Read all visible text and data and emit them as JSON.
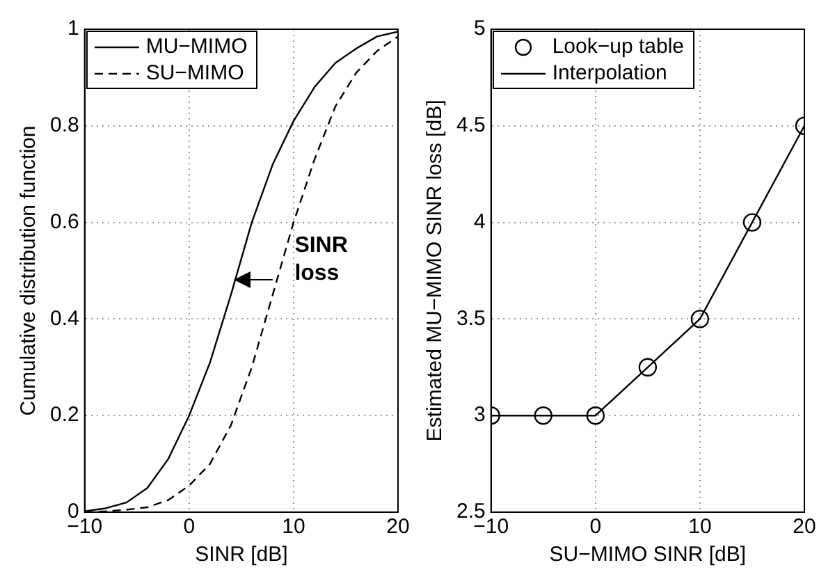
{
  "chart_data": [
    {
      "type": "line",
      "xlabel": "SINR [dB]",
      "ylabel": "Cumulative distribution function",
      "x": [
        -10,
        -8,
        -6,
        -4,
        -2,
        0,
        2,
        4,
        6,
        8,
        10,
        12,
        14,
        16,
        18,
        20
      ],
      "xlim": [
        -10,
        20
      ],
      "xticks": [
        -10,
        0,
        10,
        20
      ],
      "ylim": [
        0,
        1
      ],
      "yticks": [
        0,
        0.2,
        0.4,
        0.6,
        0.8,
        1
      ],
      "grid": true,
      "legend": "top left",
      "marker": "none",
      "annotations": [
        "SINR loss"
      ],
      "series": [
        {
          "name": "MU−MIMO",
          "color": "#000000",
          "line_style": "solid",
          "values": [
            0.002,
            0.008,
            0.02,
            0.05,
            0.11,
            0.2,
            0.31,
            0.45,
            0.6,
            0.72,
            0.81,
            0.88,
            0.93,
            0.96,
            0.985,
            0.995
          ]
        },
        {
          "name": "SU−MIMO",
          "color": "#000000",
          "line_style": "dashed",
          "values": [
            0,
            0.002,
            0.005,
            0.01,
            0.025,
            0.055,
            0.1,
            0.18,
            0.3,
            0.45,
            0.6,
            0.73,
            0.84,
            0.91,
            0.955,
            0.985
          ]
        }
      ]
    },
    {
      "type": "line",
      "xlabel": "SU−MIMO SINR [dB]",
      "ylabel": "Estimated MU−MIMO SINR loss [dB]",
      "x": [
        -10,
        -5,
        0,
        5,
        10,
        15,
        20
      ],
      "xlim": [
        -10,
        20
      ],
      "xticks": [
        -10,
        0,
        10,
        20
      ],
      "ylim": [
        2.5,
        5
      ],
      "yticks": [
        2.5,
        3,
        3.5,
        4,
        4.5,
        5
      ],
      "grid": true,
      "legend": "top left",
      "series": [
        {
          "name": "Look−up table",
          "type": "scatter",
          "marker": "circle",
          "color": "#000000",
          "values": [
            3,
            3,
            3,
            3.25,
            3.5,
            4,
            4.5
          ]
        },
        {
          "name": "Interpolation",
          "type": "line",
          "marker": "none",
          "line_style": "solid",
          "color": "#000000",
          "values": [
            3,
            3,
            3,
            3.25,
            3.5,
            4,
            4.5
          ]
        }
      ]
    }
  ]
}
